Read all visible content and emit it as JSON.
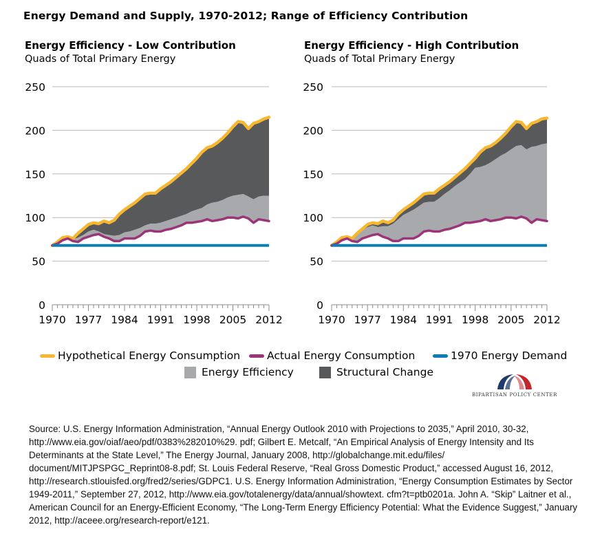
{
  "page_title": "Energy Demand and Supply, 1970-2012;  Range of Efficiency Contribution",
  "legend": {
    "hypothetical": {
      "label": "Hypothetical Energy Consumption",
      "color": "#F7B731"
    },
    "actual": {
      "label": "Actual Energy Consumption",
      "color": "#9B3577"
    },
    "demand1970": {
      "label": "1970 Energy Demand",
      "color": "#0A7EB5"
    },
    "efficiency": {
      "label": "Energy Efficiency",
      "color": "#A7A9AC"
    },
    "structural": {
      "label": "Structural Change",
      "color": "#58595B"
    }
  },
  "logo": {
    "text": "BIPARTISAN POLICY CENTER"
  },
  "source": "Source: U.S. Energy Information Administration, “Annual Energy Outlook 2010 with Projections to 2035,” April 2010, 30-32, http://www.eia.gov/oiaf/aeo/pdf/0383%282010%29. pdf; Gilbert E. Metcalf, “An Empirical Analysis of Energy Intensity and Its Determinants at the State Level,” The Energy Journal, January 2008, http://globalchange.mit.edu/files/ document/MITJPSPGC_Reprint08-8.pdf; St. Louis Federal Reserve, “Real Gross Domestic Product,” accessed August 16, 2012, http://research.stlouisfed.org/fred2/series/GDPC1. U.S. Energy Information Administration, “Energy Consumption Estimates by Sector 1949-2011,” September 27, 2012, http://www.eia.gov/totalenergy/data/annual/showtext. cfm?t=ptb0201a. John A. “Skip” Laitner et al., American Council for an Energy-Efficient Economy, “The Long-Term Energy Efficiency Potential: What the Evidence Suggest,” January 2012, http://aceee.org/research-report/e121.",
  "chart_data": [
    {
      "type": "area",
      "title": "Energy Efficiency - Low Contribution",
      "subtitle": "Quads of Total Primary Energy",
      "ylim": [
        0,
        250
      ],
      "yticks": [
        0,
        50,
        100,
        150,
        200,
        250
      ],
      "xlim": [
        1970,
        2012
      ],
      "xticks": [
        1970,
        1977,
        1984,
        1991,
        1998,
        2005,
        2012
      ],
      "grid": true,
      "x": [
        1970,
        1971,
        1972,
        1973,
        1974,
        1975,
        1976,
        1977,
        1978,
        1979,
        1980,
        1981,
        1982,
        1983,
        1984,
        1985,
        1986,
        1987,
        1988,
        1989,
        1990,
        1991,
        1992,
        1993,
        1994,
        1995,
        1996,
        1997,
        1998,
        1999,
        2000,
        2001,
        2002,
        2003,
        2004,
        2005,
        2006,
        2007,
        2008,
        2009,
        2010,
        2011,
        2012
      ],
      "series": [
        {
          "name": "Hypothetical Energy Consumption",
          "values": [
            68,
            72,
            77,
            78,
            76,
            82,
            87,
            92,
            94,
            93,
            96,
            94,
            97,
            104,
            109,
            113,
            117,
            122,
            127,
            128,
            128,
            133,
            137,
            141,
            146,
            151,
            156,
            162,
            168,
            175,
            180,
            182,
            186,
            191,
            197,
            204,
            210,
            209,
            202,
            208,
            210,
            213,
            215
          ]
        },
        {
          "name": "Actual Energy Consumption",
          "values": [
            68,
            70,
            74,
            76,
            73,
            72,
            76,
            78,
            80,
            81,
            78,
            76,
            73,
            73,
            76,
            76,
            76,
            79,
            84,
            85,
            84,
            84,
            86,
            87,
            89,
            91,
            94,
            94,
            95,
            96,
            98,
            96,
            97,
            98,
            100,
            100,
            99,
            101,
            99,
            94,
            98,
            97,
            96
          ]
        },
        {
          "name": "1970 Energy Demand",
          "values": [
            68,
            68,
            68,
            68,
            68,
            68,
            68,
            68,
            68,
            68,
            68,
            68,
            68,
            68,
            68,
            68,
            68,
            68,
            68,
            68,
            68,
            68,
            68,
            68,
            68,
            68,
            68,
            68,
            68,
            68,
            68,
            68,
            68,
            68,
            68,
            68,
            68,
            68,
            68,
            68,
            68,
            68,
            68
          ]
        },
        {
          "name": "Energy Efficiency",
          "values": [
            68,
            71,
            75,
            77,
            75,
            77,
            80,
            84,
            86,
            84,
            81,
            80,
            79,
            80,
            83,
            84,
            86,
            88,
            91,
            93,
            93,
            94,
            96,
            98,
            100,
            102,
            104,
            107,
            109,
            111,
            115,
            117,
            118,
            120,
            123,
            125,
            126,
            127,
            124,
            121,
            124,
            125,
            125
          ]
        },
        {
          "name": "Structural Change",
          "values": [
            68,
            72,
            77,
            78,
            76,
            82,
            87,
            92,
            94,
            93,
            96,
            94,
            97,
            104,
            109,
            113,
            117,
            122,
            127,
            128,
            128,
            133,
            137,
            141,
            146,
            151,
            156,
            162,
            168,
            175,
            180,
            182,
            186,
            191,
            197,
            204,
            210,
            209,
            202,
            208,
            210,
            213,
            215
          ]
        }
      ]
    },
    {
      "type": "area",
      "title": "Energy Efficiency - High Contribution",
      "subtitle": "Quads of Total Primary Energy",
      "ylim": [
        0,
        250
      ],
      "yticks": [
        0,
        50,
        100,
        150,
        200,
        250
      ],
      "xlim": [
        1970,
        2012
      ],
      "xticks": [
        1970,
        1977,
        1984,
        1991,
        1998,
        2005,
        2012
      ],
      "grid": true,
      "x": [
        1970,
        1971,
        1972,
        1973,
        1974,
        1975,
        1976,
        1977,
        1978,
        1979,
        1980,
        1981,
        1982,
        1983,
        1984,
        1985,
        1986,
        1987,
        1988,
        1989,
        1990,
        1991,
        1992,
        1993,
        1994,
        1995,
        1996,
        1997,
        1998,
        1999,
        2000,
        2001,
        2002,
        2003,
        2004,
        2005,
        2006,
        2007,
        2008,
        2009,
        2010,
        2011,
        2012
      ],
      "series": [
        {
          "name": "Hypothetical Energy Consumption",
          "values": [
            68,
            72,
            77,
            78,
            76,
            82,
            87,
            92,
            94,
            93,
            96,
            94,
            97,
            104,
            109,
            113,
            117,
            122,
            127,
            128,
            128,
            133,
            137,
            141,
            146,
            151,
            156,
            162,
            168,
            175,
            180,
            182,
            186,
            191,
            197,
            204,
            210,
            209,
            202,
            208,
            210,
            213,
            214
          ]
        },
        {
          "name": "Actual Energy Consumption",
          "values": [
            68,
            70,
            74,
            76,
            73,
            72,
            76,
            78,
            80,
            81,
            78,
            76,
            73,
            73,
            76,
            76,
            76,
            79,
            84,
            85,
            84,
            84,
            86,
            87,
            89,
            91,
            94,
            94,
            95,
            96,
            98,
            96,
            97,
            98,
            100,
            100,
            99,
            101,
            99,
            94,
            98,
            97,
            96
          ]
        },
        {
          "name": "1970 Energy Demand",
          "values": [
            68,
            68,
            68,
            68,
            68,
            68,
            68,
            68,
            68,
            68,
            68,
            68,
            68,
            68,
            68,
            68,
            68,
            68,
            68,
            68,
            68,
            68,
            68,
            68,
            68,
            68,
            68,
            68,
            68,
            68,
            68,
            68,
            68,
            68,
            68,
            68,
            68,
            68,
            68,
            68,
            68,
            68,
            68
          ]
        },
        {
          "name": "Energy Efficiency",
          "values": [
            68,
            71,
            76,
            77,
            76,
            80,
            85,
            89,
            91,
            89,
            90,
            90,
            93,
            98,
            103,
            106,
            109,
            113,
            117,
            118,
            118,
            122,
            127,
            131,
            136,
            140,
            144,
            150,
            157,
            158,
            160,
            163,
            167,
            171,
            174,
            178,
            182,
            183,
            178,
            181,
            182,
            184,
            185
          ]
        },
        {
          "name": "Structural Change",
          "values": [
            68,
            72,
            77,
            78,
            76,
            82,
            87,
            92,
            94,
            93,
            96,
            94,
            97,
            104,
            109,
            113,
            117,
            122,
            127,
            128,
            128,
            133,
            137,
            141,
            146,
            151,
            156,
            162,
            168,
            175,
            180,
            182,
            186,
            191,
            197,
            204,
            210,
            209,
            202,
            208,
            210,
            213,
            214
          ]
        }
      ]
    }
  ]
}
